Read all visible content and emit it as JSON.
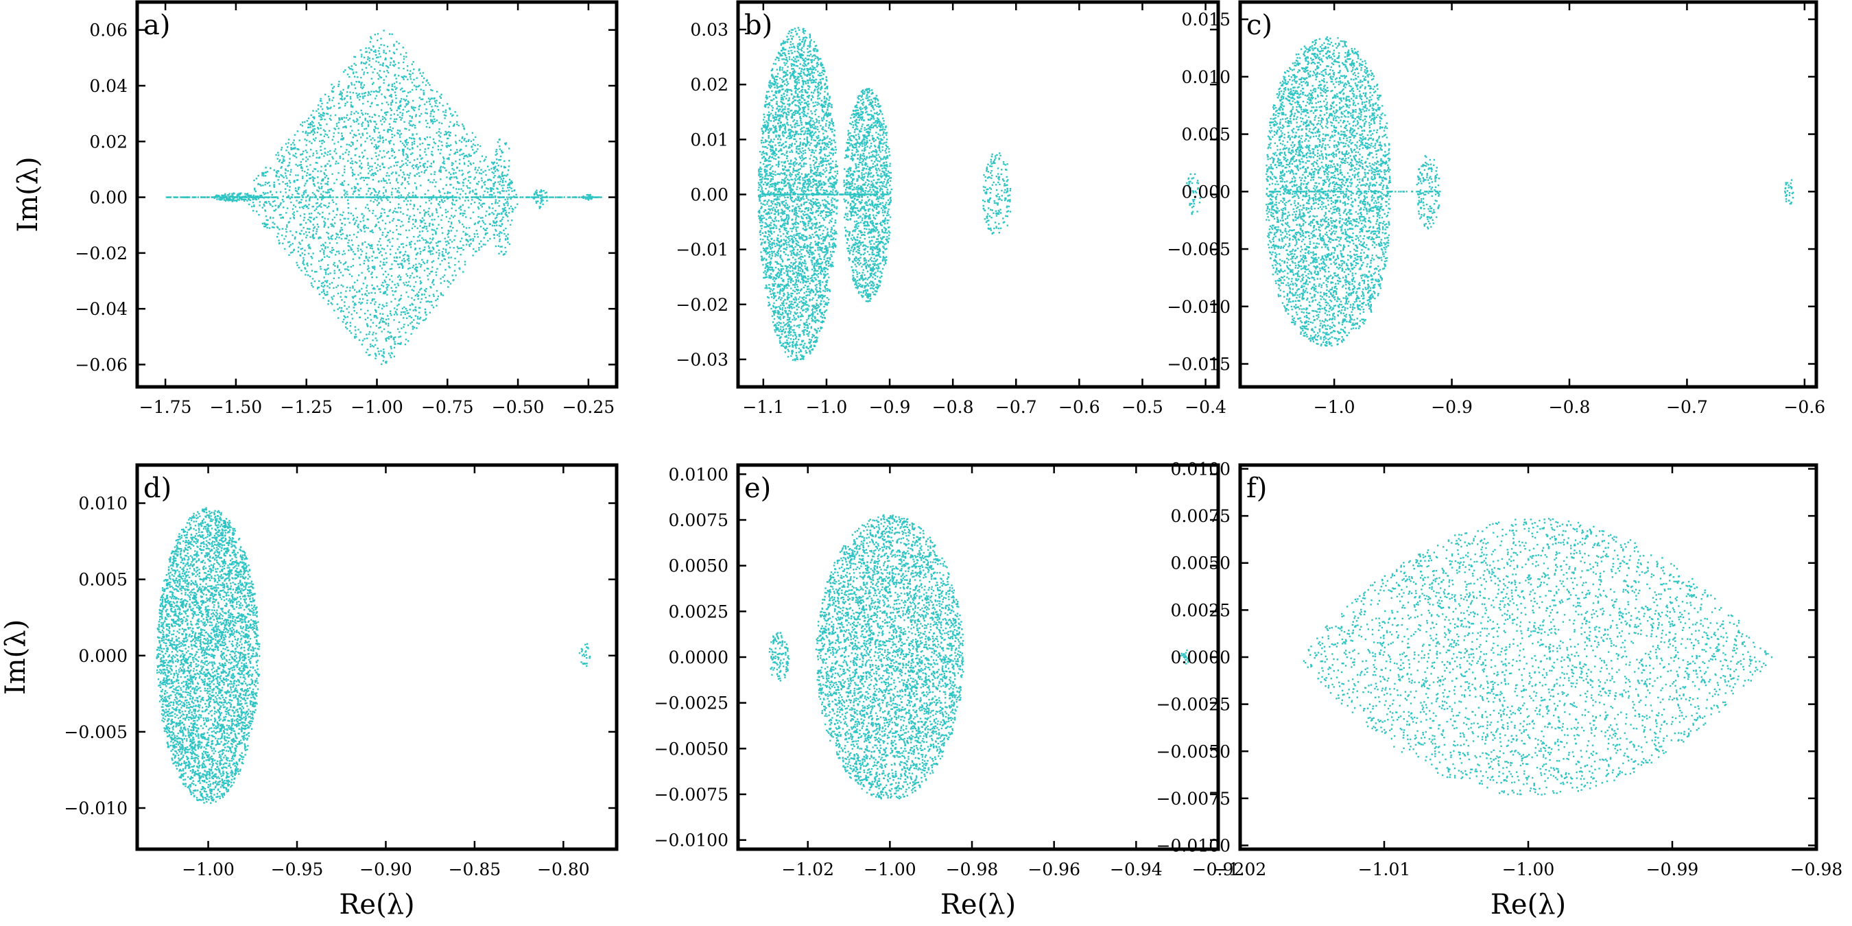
{
  "figure": {
    "point_color": "#2ec4c4",
    "axis_labels": {
      "x": "Re(λ)",
      "y": "Im(λ)"
    }
  },
  "chart_data": [
    {
      "type": "scatter",
      "panel": "a)",
      "xlim": [
        -1.85,
        -0.15
      ],
      "ylim": [
        -0.068,
        0.07
      ],
      "xticks": [
        -1.75,
        -1.5,
        -1.25,
        -1.0,
        -0.75,
        -0.5,
        -0.25
      ],
      "xtick_labels": [
        "−1.75",
        "−1.50",
        "−1.25",
        "−1.00",
        "−0.75",
        "−0.50",
        "−0.25"
      ],
      "yticks": [
        -0.06,
        -0.04,
        -0.02,
        0.0,
        0.02,
        0.04,
        0.06
      ],
      "ytick_labels": [
        "−0.06",
        "−0.04",
        "−0.02",
        "0.00",
        "0.02",
        "0.04",
        "0.06"
      ],
      "xlabel": "",
      "ylabel": "Im(λ)",
      "clusters": [
        {
          "shape": "diamond",
          "center": -0.98,
          "re_halfwidth": 0.48,
          "im_halfheight": 0.06,
          "count": 3200
        },
        {
          "shape": "line",
          "re_range": [
            -1.75,
            -0.2
          ],
          "count": 420
        },
        {
          "shape": "ellipse",
          "center": -0.555,
          "re_halfwidth": 0.04,
          "im_halfheight": 0.022,
          "count": 140
        },
        {
          "shape": "ellipse",
          "center": -0.42,
          "re_halfwidth": 0.025,
          "im_halfheight": 0.004,
          "count": 40
        },
        {
          "shape": "ellipse",
          "center": -0.25,
          "re_halfwidth": 0.02,
          "im_halfheight": 0.001,
          "count": 25
        },
        {
          "shape": "ellipse",
          "center": -1.5,
          "re_halfwidth": 0.08,
          "im_halfheight": 0.0015,
          "count": 120
        }
      ]
    },
    {
      "type": "scatter",
      "panel": "b)",
      "xlim": [
        -1.14,
        -0.38
      ],
      "ylim": [
        -0.035,
        0.035
      ],
      "xticks": [
        -1.1,
        -1.0,
        -0.9,
        -0.8,
        -0.7,
        -0.6,
        -0.5,
        -0.4
      ],
      "xtick_labels": [
        "−1.1",
        "−1.0",
        "−0.9",
        "−0.8",
        "−0.7",
        "−0.6",
        "−0.5",
        "−0.4"
      ],
      "yticks": [
        -0.03,
        -0.02,
        -0.01,
        0.0,
        0.01,
        0.02,
        0.03
      ],
      "ytick_labels": [
        "−0.03",
        "−0.02",
        "−0.01",
        "0.00",
        "0.01",
        "0.02",
        "0.03"
      ],
      "xlabel": "",
      "ylabel": "",
      "clusters": [
        {
          "shape": "ellipse",
          "center": -1.045,
          "re_halfwidth": 0.063,
          "im_halfheight": 0.0305,
          "count": 3600
        },
        {
          "shape": "ellipse",
          "center": -0.935,
          "re_halfwidth": 0.038,
          "im_halfheight": 0.0195,
          "count": 1500
        },
        {
          "shape": "ellipse",
          "center": -0.73,
          "re_halfwidth": 0.024,
          "im_halfheight": 0.0078,
          "count": 180
        },
        {
          "shape": "ellipse",
          "center": -0.42,
          "re_halfwidth": 0.012,
          "im_halfheight": 0.004,
          "count": 40
        },
        {
          "shape": "line",
          "re_range": [
            -1.1,
            -0.9
          ],
          "count": 160
        }
      ]
    },
    {
      "type": "scatter",
      "panel": "c)",
      "xlim": [
        -1.08,
        -0.59
      ],
      "ylim": [
        -0.017,
        0.0165
      ],
      "xticks": [
        -1.0,
        -0.9,
        -0.8,
        -0.7,
        -0.6
      ],
      "xtick_labels": [
        "−1.0",
        "−0.9",
        "−0.8",
        "−0.7",
        "−0.6"
      ],
      "yticks": [
        -0.015,
        -0.01,
        -0.005,
        0.0,
        0.005,
        0.01,
        0.015
      ],
      "ytick_labels": [
        "−0.015",
        "−0.010",
        "−0.005",
        "0.000",
        "0.005",
        "0.010",
        "0.015"
      ],
      "xlabel": "",
      "ylabel": "",
      "clusters": [
        {
          "shape": "ellipse",
          "center": -1.005,
          "re_halfwidth": 0.053,
          "im_halfheight": 0.0135,
          "count": 4200,
          "flat_top": true
        },
        {
          "shape": "ellipse",
          "center": -0.92,
          "re_halfwidth": 0.01,
          "im_halfheight": 0.0033,
          "count": 150
        },
        {
          "shape": "ellipse",
          "center": -0.613,
          "re_halfwidth": 0.004,
          "im_halfheight": 0.0012,
          "count": 30
        },
        {
          "shape": "line",
          "re_range": [
            -1.055,
            -0.91
          ],
          "count": 100
        }
      ]
    },
    {
      "type": "scatter",
      "panel": "d)",
      "xlim": [
        -1.04,
        -0.77
      ],
      "ylim": [
        -0.0127,
        0.0125
      ],
      "xticks": [
        -1.0,
        -0.95,
        -0.9,
        -0.85,
        -0.8
      ],
      "xtick_labels": [
        "−1.00",
        "−0.95",
        "−0.90",
        "−0.85",
        "−0.80"
      ],
      "yticks": [
        -0.01,
        -0.005,
        0.0,
        0.005,
        0.01
      ],
      "ytick_labels": [
        "−0.010",
        "−0.005",
        "0.000",
        "0.005",
        "0.010"
      ],
      "xlabel": "Re(λ)",
      "ylabel": "Im(λ)",
      "clusters": [
        {
          "shape": "ellipse",
          "center": -1.0,
          "re_halfwidth": 0.029,
          "im_halfheight": 0.0097,
          "count": 4500
        },
        {
          "shape": "ellipse",
          "center": -0.788,
          "re_halfwidth": 0.003,
          "im_halfheight": 0.0009,
          "count": 25
        }
      ]
    },
    {
      "type": "scatter",
      "panel": "e)",
      "xlim": [
        -1.037,
        -0.92
      ],
      "ylim": [
        -0.0105,
        0.0105
      ],
      "xticks": [
        -1.02,
        -1.0,
        -0.98,
        -0.96,
        -0.94,
        -0.92
      ],
      "xtick_labels": [
        "−1.02",
        "−1.00",
        "−0.98",
        "−0.96",
        "−0.94",
        "−0.92"
      ],
      "yticks": [
        -0.01,
        -0.0075,
        -0.005,
        -0.0025,
        0.0,
        0.0025,
        0.005,
        0.0075,
        0.01
      ],
      "ytick_labels": [
        "−0.0100",
        "−0.0075",
        "−0.0050",
        "−0.0025",
        "0.0000",
        "0.0025",
        "0.0050",
        "0.0075",
        "0.0100"
      ],
      "xlabel": "Re(λ)",
      "ylabel": "",
      "clusters": [
        {
          "shape": "ellipse",
          "center": -1.0,
          "re_halfwidth": 0.018,
          "im_halfheight": 0.0078,
          "count": 4500
        },
        {
          "shape": "ellipse",
          "center": -1.027,
          "re_halfwidth": 0.0025,
          "im_halfheight": 0.0014,
          "count": 120
        },
        {
          "shape": "ellipse",
          "center": -0.928,
          "re_halfwidth": 0.0012,
          "im_halfheight": 0.0004,
          "count": 25
        }
      ]
    },
    {
      "type": "scatter",
      "panel": "f)",
      "xlim": [
        -1.02,
        -0.98
      ],
      "ylim": [
        -0.0102,
        0.0102
      ],
      "xticks": [
        -1.02,
        -1.01,
        -1.0,
        -0.99,
        -0.98
      ],
      "xtick_labels": [
        "−1.02",
        "−1.01",
        "−1.00",
        "−0.99",
        "−0.98"
      ],
      "yticks": [
        -0.01,
        -0.0075,
        -0.005,
        -0.0025,
        0.0,
        0.0025,
        0.005,
        0.0075,
        0.01
      ],
      "ytick_labels": [
        "−0.0100",
        "−0.0075",
        "−0.0050",
        "−0.0025",
        "0.0000",
        "0.0025",
        "0.0050",
        "0.0075",
        "0.0100"
      ],
      "xlabel": "Re(λ)",
      "ylabel": "",
      "clusters": [
        {
          "shape": "lens",
          "center": -0.9995,
          "re_halfwidth": 0.0165,
          "im_halfheight": 0.0074,
          "count": 3600
        }
      ]
    }
  ]
}
